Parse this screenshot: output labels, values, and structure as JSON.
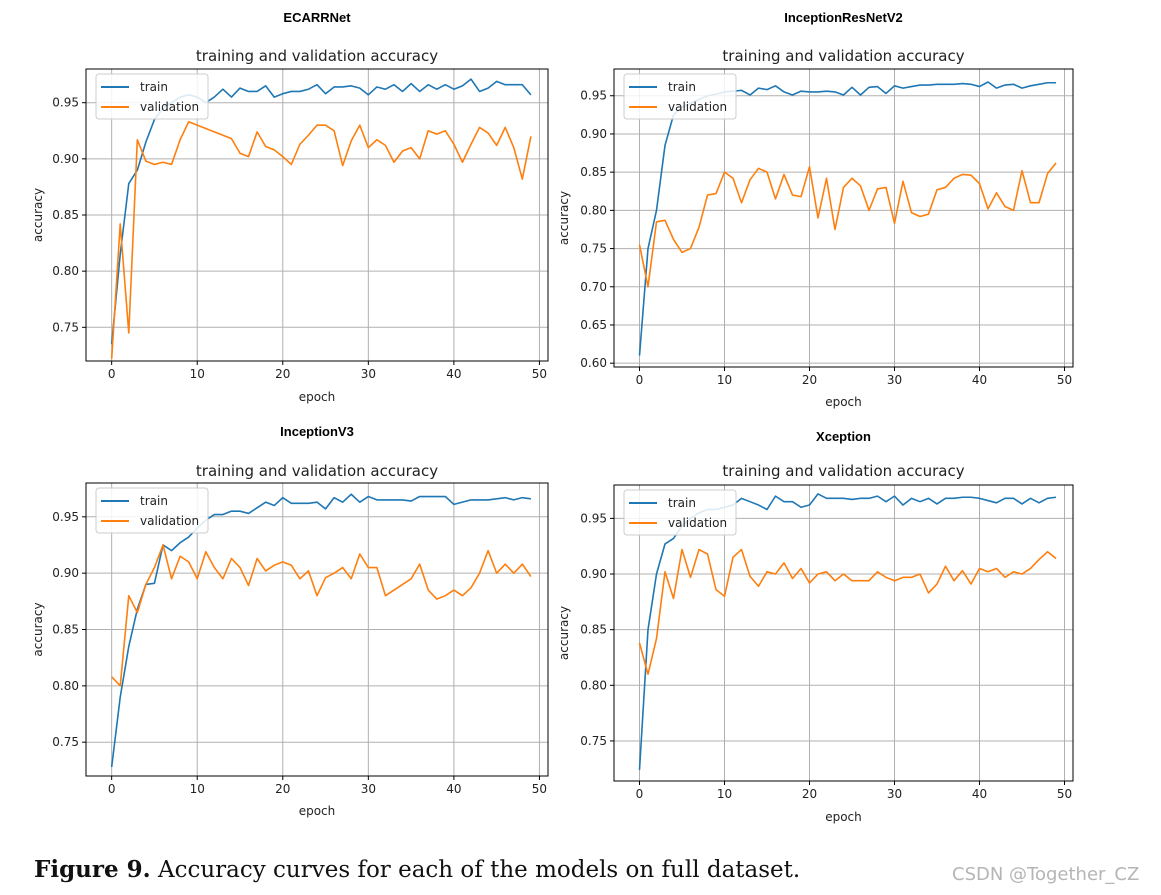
{
  "figure": {
    "caption_label": "Figure 9.",
    "caption_text": "Accuracy curves for each of the models on full dataset.",
    "watermark": "CSDN @Together_CZ"
  },
  "colors": {
    "train": "#1f77b4",
    "validation": "#ff7f0e",
    "grid": "#b0b0b0"
  },
  "chart_data": [
    {
      "type": "line",
      "model": "ECARRNet",
      "title": "training and validation accuracy",
      "xlabel": "epoch",
      "ylabel": "accuracy",
      "xlim": [
        -3,
        51
      ],
      "ylim": [
        0.72,
        0.98
      ],
      "xticks": [
        0,
        10,
        20,
        30,
        40,
        50
      ],
      "yticks": [
        0.75,
        0.8,
        0.85,
        0.9,
        0.95
      ],
      "grid": true,
      "legend_position": "top-left",
      "series": [
        {
          "name": "train",
          "values": [
            0.735,
            0.815,
            0.878,
            0.89,
            0.915,
            0.935,
            0.945,
            0.95,
            0.955,
            0.957,
            0.955,
            0.95,
            0.955,
            0.962,
            0.955,
            0.963,
            0.96,
            0.96,
            0.965,
            0.955,
            0.958,
            0.96,
            0.96,
            0.962,
            0.966,
            0.958,
            0.964,
            0.964,
            0.965,
            0.963,
            0.957,
            0.964,
            0.962,
            0.966,
            0.96,
            0.967,
            0.96,
            0.966,
            0.962,
            0.966,
            0.962,
            0.965,
            0.971,
            0.96,
            0.963,
            0.969,
            0.966,
            0.966,
            0.966,
            0.957
          ]
        },
        {
          "name": "validation",
          "values": [
            0.722,
            0.842,
            0.745,
            0.917,
            0.898,
            0.895,
            0.897,
            0.895,
            0.917,
            0.933,
            0.93,
            0.927,
            0.924,
            0.921,
            0.918,
            0.905,
            0.902,
            0.924,
            0.911,
            0.908,
            0.902,
            0.895,
            0.913,
            0.921,
            0.93,
            0.93,
            0.925,
            0.894,
            0.916,
            0.93,
            0.91,
            0.917,
            0.912,
            0.897,
            0.907,
            0.91,
            0.9,
            0.925,
            0.922,
            0.925,
            0.913,
            0.897,
            0.913,
            0.928,
            0.923,
            0.912,
            0.928,
            0.91,
            0.882,
            0.92
          ]
        }
      ]
    },
    {
      "type": "line",
      "model": "InceptionResNetV2",
      "title": "training and validation accuracy",
      "xlabel": "epoch",
      "ylabel": "accuracy",
      "xlim": [
        -3,
        51
      ],
      "ylim": [
        0.595,
        0.985
      ],
      "xticks": [
        0,
        10,
        20,
        30,
        40,
        50
      ],
      "yticks": [
        0.6,
        0.65,
        0.7,
        0.75,
        0.8,
        0.85,
        0.9,
        0.95
      ],
      "grid": true,
      "legend_position": "top-left",
      "series": [
        {
          "name": "train",
          "values": [
            0.61,
            0.75,
            0.8,
            0.885,
            0.925,
            0.935,
            0.94,
            0.945,
            0.95,
            0.952,
            0.955,
            0.956,
            0.957,
            0.951,
            0.96,
            0.958,
            0.963,
            0.955,
            0.951,
            0.956,
            0.955,
            0.955,
            0.956,
            0.955,
            0.951,
            0.961,
            0.951,
            0.961,
            0.962,
            0.953,
            0.963,
            0.96,
            0.962,
            0.964,
            0.964,
            0.965,
            0.965,
            0.965,
            0.966,
            0.965,
            0.962,
            0.968,
            0.96,
            0.964,
            0.965,
            0.96,
            0.963,
            0.965,
            0.967,
            0.967
          ]
        },
        {
          "name": "validation",
          "values": [
            0.755,
            0.7,
            0.785,
            0.787,
            0.762,
            0.745,
            0.75,
            0.778,
            0.82,
            0.822,
            0.85,
            0.842,
            0.81,
            0.84,
            0.855,
            0.85,
            0.815,
            0.847,
            0.82,
            0.818,
            0.857,
            0.79,
            0.842,
            0.775,
            0.83,
            0.842,
            0.832,
            0.8,
            0.828,
            0.83,
            0.783,
            0.838,
            0.797,
            0.792,
            0.795,
            0.827,
            0.83,
            0.842,
            0.847,
            0.846,
            0.835,
            0.802,
            0.823,
            0.805,
            0.8,
            0.852,
            0.81,
            0.81,
            0.848,
            0.862
          ]
        }
      ]
    },
    {
      "type": "line",
      "model": "InceptionV3",
      "title": "training and validation accuracy",
      "xlabel": "epoch",
      "ylabel": "accuracy",
      "xlim": [
        -3,
        51
      ],
      "ylim": [
        0.72,
        0.98
      ],
      "xticks": [
        0,
        10,
        20,
        30,
        40,
        50
      ],
      "yticks": [
        0.75,
        0.8,
        0.85,
        0.9,
        0.95
      ],
      "grid": true,
      "legend_position": "top-left",
      "series": [
        {
          "name": "train",
          "values": [
            0.728,
            0.79,
            0.835,
            0.868,
            0.89,
            0.891,
            0.925,
            0.92,
            0.927,
            0.932,
            0.94,
            0.947,
            0.952,
            0.952,
            0.955,
            0.955,
            0.953,
            0.958,
            0.963,
            0.96,
            0.967,
            0.962,
            0.962,
            0.962,
            0.963,
            0.957,
            0.967,
            0.963,
            0.97,
            0.963,
            0.968,
            0.965,
            0.965,
            0.965,
            0.965,
            0.964,
            0.968,
            0.968,
            0.968,
            0.968,
            0.961,
            0.963,
            0.965,
            0.965,
            0.965,
            0.966,
            0.967,
            0.965,
            0.967,
            0.966
          ]
        },
        {
          "name": "validation",
          "values": [
            0.808,
            0.8,
            0.88,
            0.865,
            0.89,
            0.905,
            0.925,
            0.895,
            0.915,
            0.91,
            0.895,
            0.919,
            0.905,
            0.895,
            0.913,
            0.905,
            0.889,
            0.913,
            0.902,
            0.907,
            0.91,
            0.907,
            0.895,
            0.902,
            0.88,
            0.896,
            0.9,
            0.905,
            0.895,
            0.917,
            0.905,
            0.905,
            0.88,
            0.885,
            0.89,
            0.895,
            0.908,
            0.885,
            0.877,
            0.88,
            0.885,
            0.88,
            0.887,
            0.9,
            0.92,
            0.9,
            0.908,
            0.9,
            0.908,
            0.897
          ]
        }
      ]
    },
    {
      "type": "line",
      "model": "Xception",
      "title": "training and validation accuracy",
      "xlabel": "epoch",
      "ylabel": "accuracy",
      "xlim": [
        -3,
        51
      ],
      "ylim": [
        0.714,
        0.98
      ],
      "xticks": [
        0,
        10,
        20,
        30,
        40,
        50
      ],
      "yticks": [
        0.75,
        0.8,
        0.85,
        0.9,
        0.95
      ],
      "grid": true,
      "legend_position": "top-left",
      "series": [
        {
          "name": "train",
          "values": [
            0.724,
            0.85,
            0.9,
            0.927,
            0.932,
            0.943,
            0.95,
            0.955,
            0.958,
            0.958,
            0.96,
            0.962,
            0.968,
            0.965,
            0.962,
            0.958,
            0.97,
            0.965,
            0.965,
            0.96,
            0.962,
            0.972,
            0.968,
            0.968,
            0.968,
            0.967,
            0.968,
            0.968,
            0.97,
            0.965,
            0.97,
            0.962,
            0.968,
            0.965,
            0.968,
            0.963,
            0.968,
            0.968,
            0.969,
            0.969,
            0.968,
            0.966,
            0.964,
            0.968,
            0.968,
            0.963,
            0.968,
            0.964,
            0.968,
            0.969
          ]
        },
        {
          "name": "validation",
          "values": [
            0.838,
            0.81,
            0.842,
            0.902,
            0.878,
            0.922,
            0.897,
            0.922,
            0.918,
            0.886,
            0.88,
            0.915,
            0.922,
            0.898,
            0.889,
            0.902,
            0.9,
            0.91,
            0.896,
            0.905,
            0.892,
            0.9,
            0.902,
            0.894,
            0.9,
            0.894,
            0.894,
            0.894,
            0.902,
            0.897,
            0.894,
            0.897,
            0.897,
            0.9,
            0.883,
            0.891,
            0.907,
            0.894,
            0.903,
            0.891,
            0.905,
            0.902,
            0.905,
            0.897,
            0.902,
            0.9,
            0.905,
            0.913,
            0.92,
            0.914
          ]
        }
      ]
    }
  ]
}
